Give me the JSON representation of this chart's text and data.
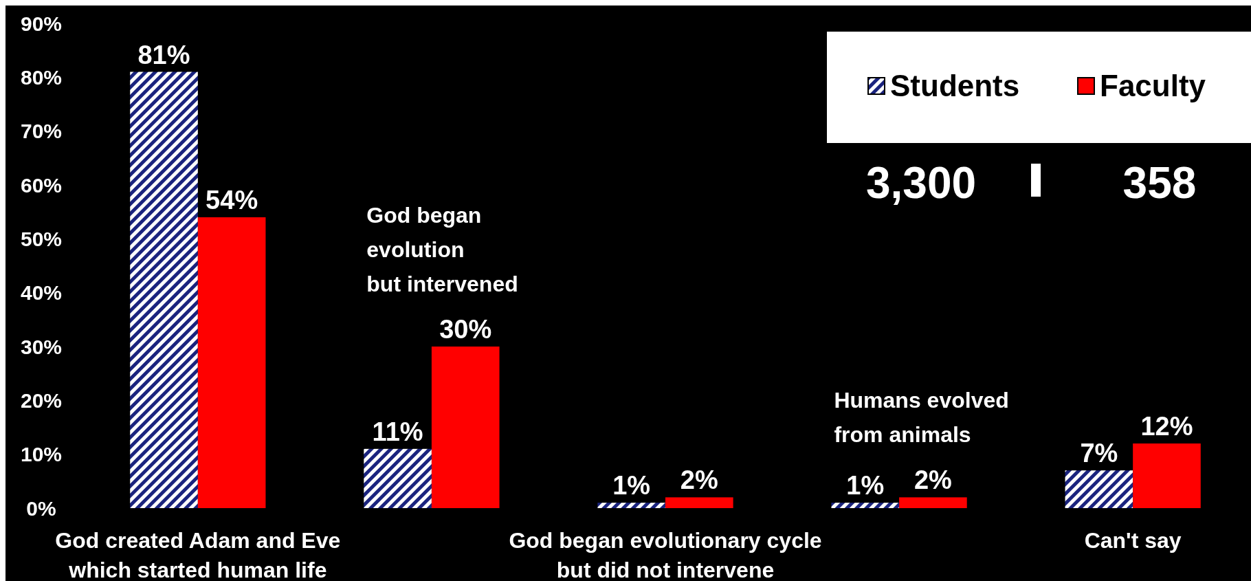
{
  "chart_data": {
    "type": "bar",
    "categories": [
      "God created Adam and Eve which started human life",
      "God began evolution but intervened",
      "God began evolutionary cycle but did not intervene",
      "Humans evolved from animals",
      "Can't say"
    ],
    "series": [
      {
        "name": "Students",
        "color": "#1a237e",
        "values": [
          81,
          11,
          1,
          1,
          7
        ],
        "value_labels": [
          "81%",
          "11%",
          "1%",
          "1%",
          "7%"
        ]
      },
      {
        "name": "Faculty",
        "color": "#ff0000",
        "values": [
          54,
          30,
          2,
          2,
          12
        ],
        "value_labels": [
          "54%",
          "30%",
          "2%",
          "2%",
          "12%"
        ]
      }
    ],
    "ylim": [
      0,
      90
    ],
    "yticks": [
      {
        "value": 0,
        "label": "0%"
      },
      {
        "value": 10,
        "label": "10%"
      },
      {
        "value": 20,
        "label": "20%"
      },
      {
        "value": 30,
        "label": "30%"
      },
      {
        "value": 40,
        "label": "40%"
      },
      {
        "value": 50,
        "label": "50%"
      },
      {
        "value": 60,
        "label": "60%"
      },
      {
        "value": 70,
        "label": "70%"
      },
      {
        "value": 80,
        "label": "80%"
      },
      {
        "value": 90,
        "label": "90%"
      }
    ],
    "legend": "top right",
    "grid": false,
    "annotations": [
      "3,300",
      "358"
    ]
  }
}
